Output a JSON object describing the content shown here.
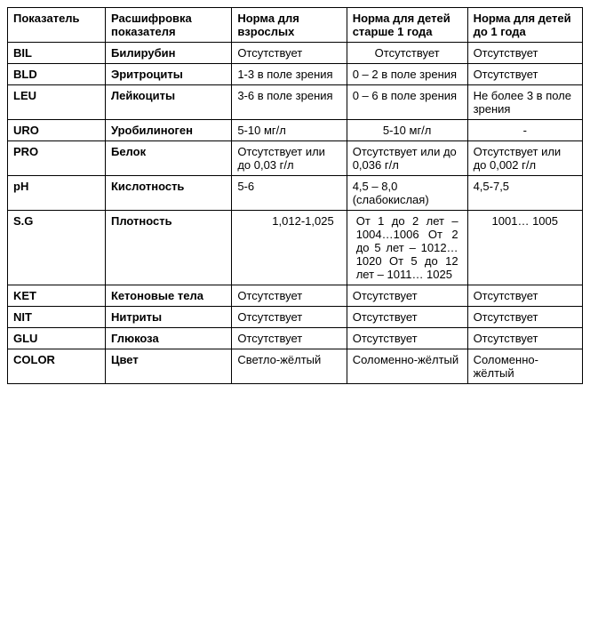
{
  "table": {
    "columns": [
      "Показатель",
      "Расшифровка показателя",
      "Норма для взрослых",
      "Норма для детей старше 1 года",
      "Норма для детей до 1 года"
    ],
    "rows": [
      {
        "ind": "BIL",
        "desc": "Билирубин",
        "adult": "Отсутствует",
        "child1": "Отсутствует",
        "child2": "Отсутствует"
      },
      {
        "ind": "BLD",
        "desc": "Эритроциты",
        "adult": "1-3 в поле зрения",
        "child1": "0 – 2 в поле зрения",
        "child2": "Отсутствует"
      },
      {
        "ind": "LEU",
        "desc": "Лейкоциты",
        "adult": "3-6 в поле зрения",
        "child1": "0 – 6 в поле зрения",
        "child2": "Не более 3 в поле зрения"
      },
      {
        "ind": "URO",
        "desc": "Уробилиноген",
        "adult": "5-10 мг/л",
        "child1": "5-10 мг/л",
        "child2": "-"
      },
      {
        "ind": "PRO",
        "desc": "Белок",
        "adult": "Отсутствует или до 0,03 г/л",
        "child1": "Отсутствует или  до 0,036 г/л",
        "child2": "Отсутствует или до 0,002 г/л"
      },
      {
        "ind": "pH",
        "desc": "Кислотность",
        "adult": "5-6",
        "child1": "4,5 – 8,0 (слабокислая)",
        "child2": "4,5-7,5"
      },
      {
        "ind": "S.G",
        "desc": "Плотность",
        "adult": "1,012-1,025",
        "child1": "От 1 до 2 лет – 1004…1006 От 2 до 5 лет – 1012… 1020 От 5 до 12 лет – 1011… 1025",
        "child2": "1001… 1005"
      },
      {
        "ind": "KET",
        "desc": "Кетоновые тела",
        "adult": "Отсутствует",
        "child1": "Отсутствует",
        "child2": "Отсутствует"
      },
      {
        "ind": "NIT",
        "desc": "Нитриты",
        "adult": "Отсутствует",
        "child1": "Отсутствует",
        "child2": "Отсутствует"
      },
      {
        "ind": "GLU",
        "desc": "Глюкоза",
        "adult": "Отсутствует",
        "child1": "Отсутствует",
        "child2": "Отсутствует"
      },
      {
        "ind": "COLOR",
        "desc": "Цвет",
        "adult": "Светло-жёлтый",
        "child1": "Соломенно-жёлтый",
        "child2": "Соломенно-жёлтый"
      }
    ],
    "colors": {
      "border": "#000000",
      "background": "#ffffff",
      "text": "#000000"
    },
    "font": {
      "family": "Verdana",
      "size_pt": 10,
      "header_weight": "bold"
    }
  }
}
